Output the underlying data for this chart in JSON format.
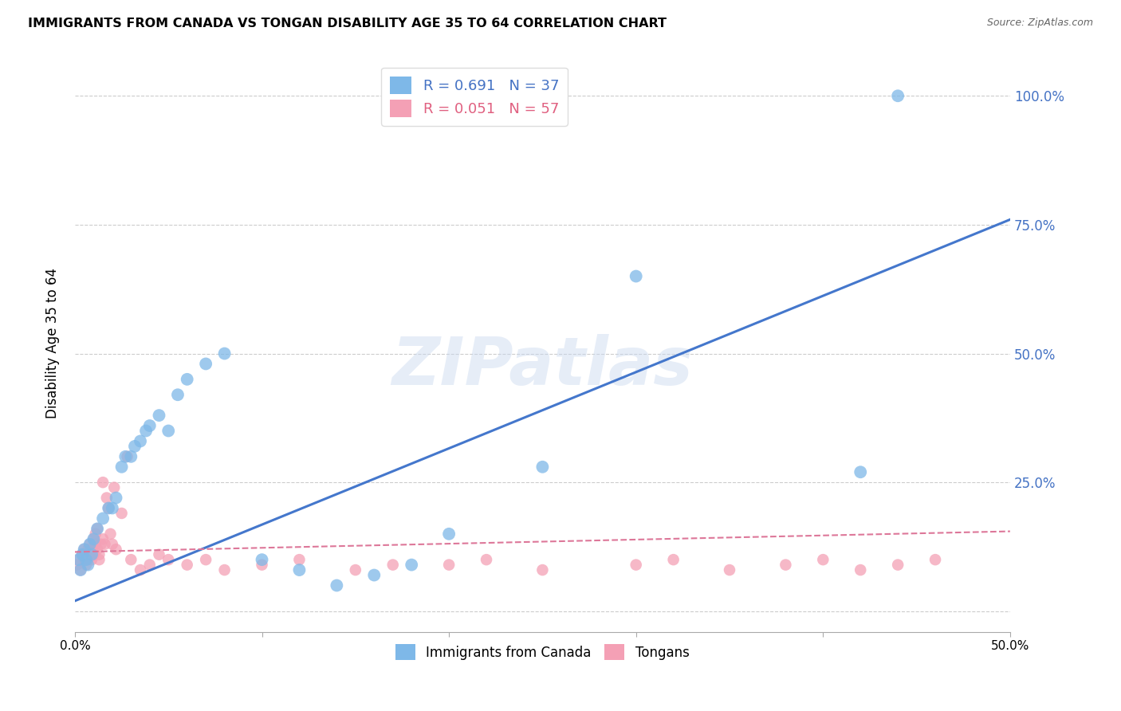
{
  "title": "IMMIGRANTS FROM CANADA VS TONGAN DISABILITY AGE 35 TO 64 CORRELATION CHART",
  "source": "Source: ZipAtlas.com",
  "ylabel_label": "Disability Age 35 to 64",
  "x_min": 0.0,
  "x_max": 0.5,
  "y_min": -0.04,
  "y_max": 1.08,
  "x_ticks": [
    0.0,
    0.1,
    0.2,
    0.3,
    0.4,
    0.5
  ],
  "x_tick_labels": [
    "0.0%",
    "",
    "",
    "",
    "",
    "50.0%"
  ],
  "y_ticks": [
    0.0,
    0.25,
    0.5,
    0.75,
    1.0
  ],
  "y_tick_labels": [
    "",
    "25.0%",
    "50.0%",
    "75.0%",
    "100.0%"
  ],
  "blue_color": "#7EB8E8",
  "pink_color": "#F4A0B5",
  "trendline_blue": "#4477CC",
  "trendline_pink": "#DD7799",
  "legend_R_blue": "0.691",
  "legend_N_blue": "37",
  "legend_R_pink": "0.051",
  "legend_N_pink": "57",
  "watermark": "ZIPatlas",
  "legend_label_blue": "Immigrants from Canada",
  "legend_label_pink": "Tongans",
  "blue_scatter_x": [
    0.002,
    0.003,
    0.004,
    0.005,
    0.006,
    0.007,
    0.008,
    0.009,
    0.01,
    0.012,
    0.015,
    0.018,
    0.02,
    0.022,
    0.025,
    0.027,
    0.03,
    0.032,
    0.035,
    0.038,
    0.04,
    0.045,
    0.05,
    0.055,
    0.06,
    0.07,
    0.08,
    0.1,
    0.12,
    0.14,
    0.16,
    0.18,
    0.2,
    0.25,
    0.3,
    0.42,
    0.44
  ],
  "blue_scatter_y": [
    0.1,
    0.08,
    0.11,
    0.12,
    0.1,
    0.09,
    0.13,
    0.11,
    0.14,
    0.16,
    0.18,
    0.2,
    0.2,
    0.22,
    0.28,
    0.3,
    0.3,
    0.32,
    0.33,
    0.35,
    0.36,
    0.38,
    0.35,
    0.42,
    0.45,
    0.48,
    0.5,
    0.1,
    0.08,
    0.05,
    0.07,
    0.09,
    0.15,
    0.28,
    0.65,
    0.27,
    1.0
  ],
  "pink_scatter_x": [
    0.001,
    0.002,
    0.003,
    0.004,
    0.005,
    0.005,
    0.006,
    0.006,
    0.007,
    0.007,
    0.008,
    0.008,
    0.009,
    0.009,
    0.01,
    0.01,
    0.011,
    0.011,
    0.012,
    0.012,
    0.013,
    0.013,
    0.014,
    0.015,
    0.015,
    0.016,
    0.017,
    0.018,
    0.019,
    0.02,
    0.021,
    0.022,
    0.025,
    0.028,
    0.03,
    0.035,
    0.04,
    0.045,
    0.05,
    0.06,
    0.07,
    0.08,
    0.1,
    0.12,
    0.15,
    0.17,
    0.2,
    0.22,
    0.25,
    0.3,
    0.32,
    0.35,
    0.38,
    0.4,
    0.42,
    0.44,
    0.46
  ],
  "pink_scatter_y": [
    0.09,
    0.1,
    0.08,
    0.11,
    0.1,
    0.12,
    0.09,
    0.11,
    0.1,
    0.12,
    0.11,
    0.13,
    0.1,
    0.12,
    0.11,
    0.14,
    0.13,
    0.15,
    0.12,
    0.16,
    0.1,
    0.11,
    0.13,
    0.14,
    0.25,
    0.13,
    0.22,
    0.2,
    0.15,
    0.13,
    0.24,
    0.12,
    0.19,
    0.3,
    0.1,
    0.08,
    0.09,
    0.11,
    0.1,
    0.09,
    0.1,
    0.08,
    0.09,
    0.1,
    0.08,
    0.09,
    0.09,
    0.1,
    0.08,
    0.09,
    0.1,
    0.08,
    0.09,
    0.1,
    0.08,
    0.09,
    0.1
  ],
  "blue_trend_x": [
    0.0,
    0.5
  ],
  "blue_trend_y": [
    0.02,
    0.76
  ],
  "pink_trend_x": [
    0.0,
    0.5
  ],
  "pink_trend_y": [
    0.115,
    0.155
  ]
}
